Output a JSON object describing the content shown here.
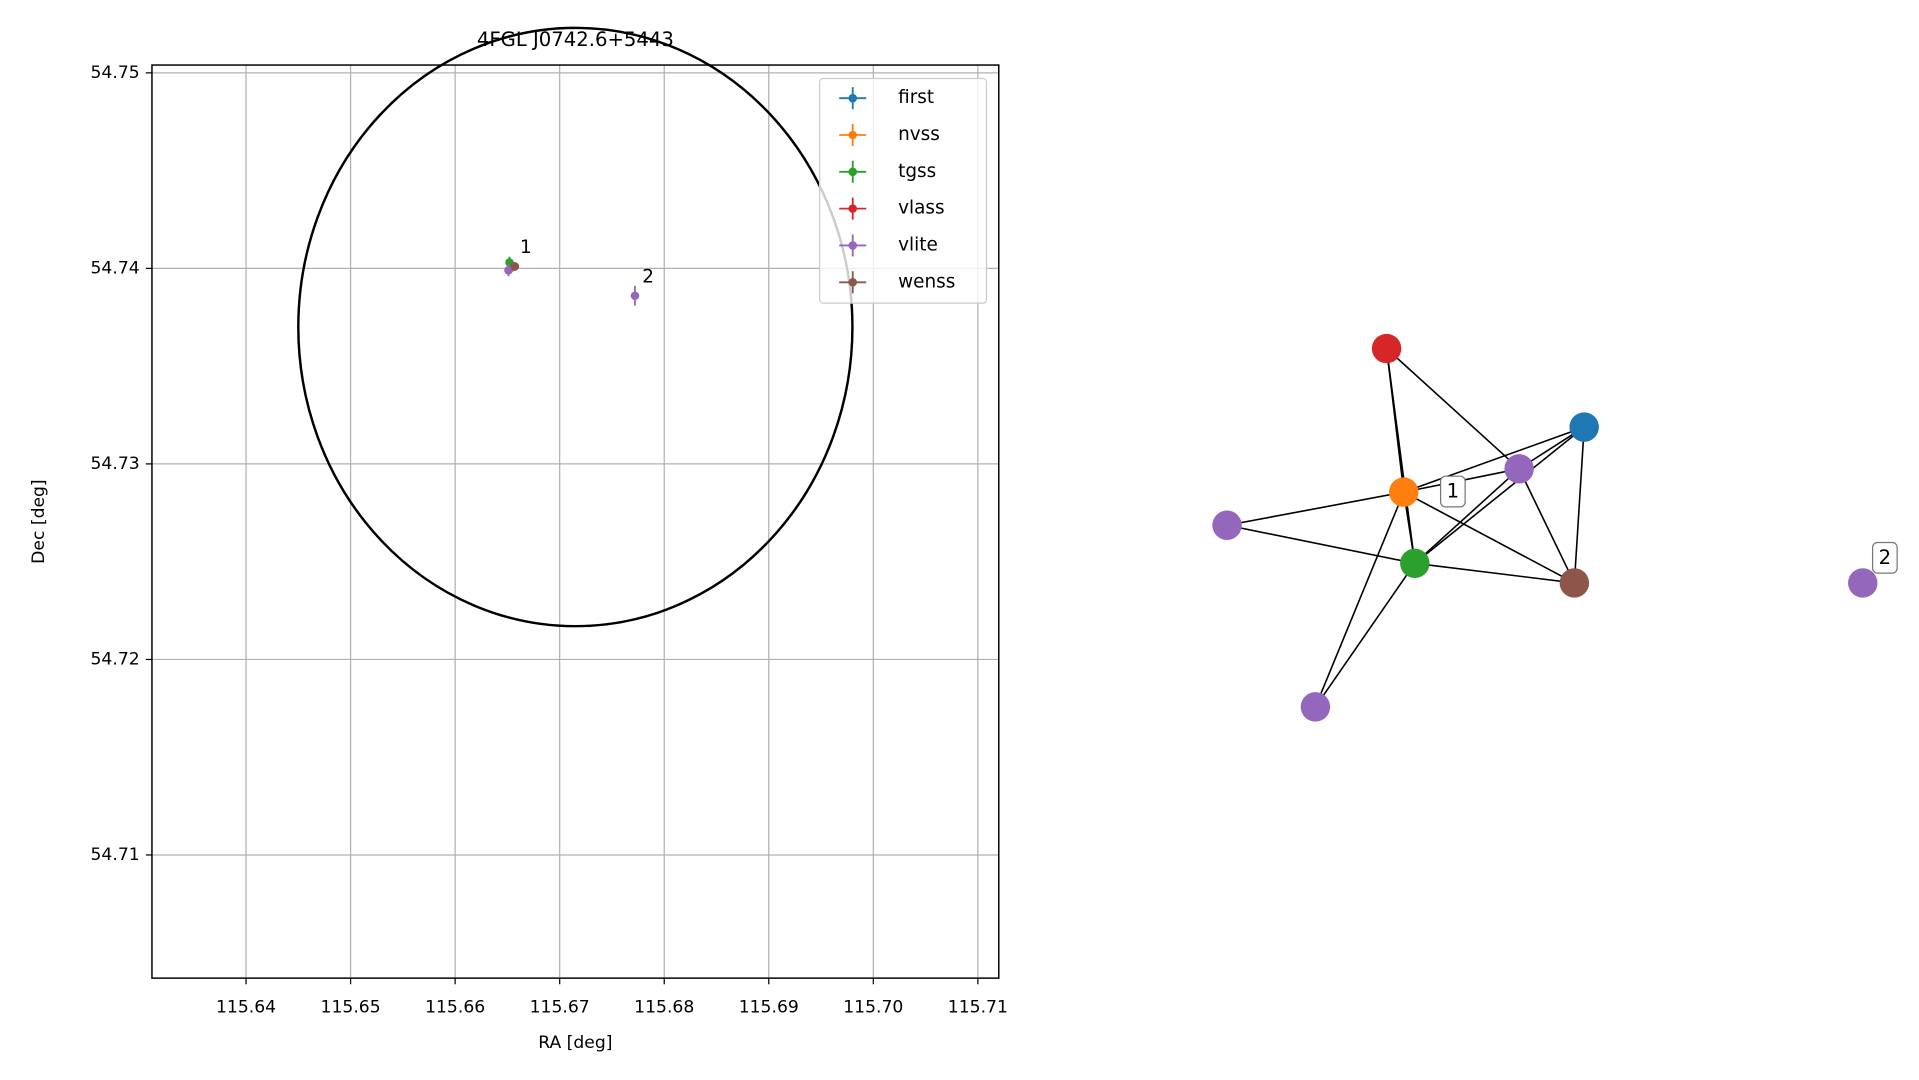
{
  "chart_data": [
    {
      "type": "errorbar",
      "title": "4FGL J0742.6+5443",
      "x_label": "RA [deg]",
      "y_label": "Dec [deg]",
      "xlim": [
        115.631,
        115.712
      ],
      "ylim": [
        54.7037,
        54.7504
      ],
      "xticks": [
        115.64,
        115.65,
        115.66,
        115.67,
        115.68,
        115.69,
        {
          "value": 115.7,
          "label": "115.70"
        },
        115.71
      ],
      "yticks": [
        54.71,
        54.72,
        54.73,
        54.74,
        54.75
      ],
      "grid": true,
      "legend": "upper right",
      "circle": {
        "x": 115.6715,
        "y": 54.737,
        "radius": 0.0153
      },
      "series": [
        {
          "name": "first",
          "color": "#1f77b4",
          "x": [
            115.6655
          ],
          "y": [
            54.7401
          ],
          "xerr": [
            0.0001
          ],
          "yerr": [
            0.0001
          ]
        },
        {
          "name": "nvss",
          "color": "#ff7f0e",
          "x": [
            115.6653
          ],
          "y": [
            54.74
          ],
          "xerr": [
            0.0001
          ],
          "yerr": [
            0.0001
          ]
        },
        {
          "name": "tgss",
          "color": "#2ca02c",
          "x": [
            115.6652
          ],
          "y": [
            54.7403
          ],
          "xerr": [
            0.0001
          ],
          "yerr": [
            0.0003
          ]
        },
        {
          "name": "vlass",
          "color": "#d62728",
          "x": [
            115.6657
          ],
          "y": [
            54.7401
          ],
          "xerr": [
            5e-05
          ],
          "yerr": [
            5e-05
          ]
        },
        {
          "name": "vlite",
          "color": "#9467bd",
          "x": [
            115.6651,
            115.6772
          ],
          "y": [
            54.7399,
            54.7386
          ],
          "xerr": [
            0.0002,
            0.0002
          ],
          "yerr": [
            0.0003,
            0.0005
          ]
        },
        {
          "name": "wenss",
          "color": "#8c564b",
          "x": [
            115.6657
          ],
          "y": [
            54.7401
          ],
          "xerr": [
            0.0001
          ],
          "yerr": [
            0.0001
          ]
        }
      ],
      "annotations": [
        {
          "text": "1",
          "x": 115.6655,
          "y": 54.7401
        },
        {
          "text": "2",
          "x": 115.6772,
          "y": 54.7386
        }
      ]
    },
    {
      "type": "network",
      "nodes": [
        {
          "color": "#d62728"
        },
        {
          "color": "#1f77b4"
        },
        {
          "color": "#ff7f0e"
        },
        {
          "color": "#9467bd"
        },
        {
          "color": "#9467bd"
        },
        {
          "color": "#2ca02c"
        },
        {
          "color": "#8c564b"
        },
        {
          "color": "#9467bd"
        },
        {
          "color": "#9467bd"
        }
      ],
      "edges": [
        [
          0,
          2
        ],
        [
          0,
          5
        ],
        [
          0,
          3
        ],
        [
          1,
          3
        ],
        [
          1,
          2
        ],
        [
          1,
          5
        ],
        [
          1,
          6
        ],
        [
          2,
          3
        ],
        [
          4,
          2
        ],
        [
          4,
          5
        ],
        [
          7,
          2
        ],
        [
          7,
          5
        ],
        [
          3,
          5
        ],
        [
          3,
          6
        ],
        [
          2,
          6
        ],
        [
          2,
          5
        ],
        [
          5,
          6
        ]
      ],
      "node_labels": [
        {
          "text": "1",
          "node": 2
        },
        {
          "text": "2",
          "node": 8
        }
      ]
    }
  ]
}
